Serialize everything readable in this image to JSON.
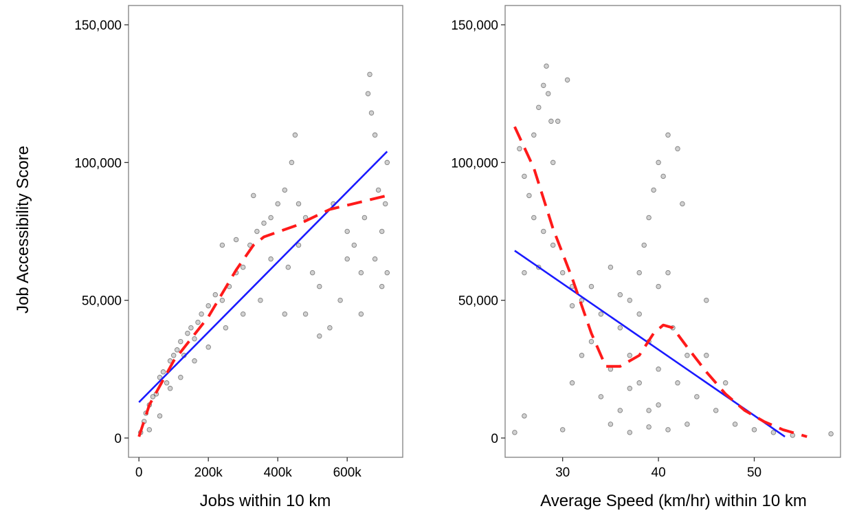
{
  "figure": {
    "ylabel": "Job Accessibility Score",
    "colors": {
      "background": "#ffffff",
      "panel_border": "#7f7f7f",
      "points": "#000000",
      "linear_fit": "#1a1aff",
      "smooth_fit": "#ff1a1a"
    }
  },
  "chart_data": [
    {
      "type": "scatter",
      "title": "",
      "xlabel": "Jobs within 10 km",
      "ylabel": "Job Accessibility Score",
      "xlim": [
        -30000,
        760000
      ],
      "ylim": [
        -7000,
        157000
      ],
      "x_ticks": [
        0,
        200000,
        400000,
        600000
      ],
      "x_tick_labels": [
        "0",
        "200k",
        "400k",
        "600k"
      ],
      "y_ticks": [
        0,
        50000,
        100000,
        150000
      ],
      "y_tick_labels": [
        "0",
        "50,000",
        "100,000",
        "150,000"
      ],
      "grid": false,
      "legend": "none",
      "series": [
        {
          "kind": "points",
          "points": [
            [
              5000,
              2000
            ],
            [
              15000,
              6000
            ],
            [
              20000,
              9000
            ],
            [
              30000,
              12000
            ],
            [
              40000,
              15000
            ],
            [
              50000,
              16000
            ],
            [
              60000,
              22000
            ],
            [
              70000,
              24000
            ],
            [
              80000,
              20000
            ],
            [
              90000,
              28000
            ],
            [
              100000,
              30000
            ],
            [
              110000,
              32000
            ],
            [
              120000,
              35000
            ],
            [
              130000,
              30000
            ],
            [
              140000,
              38000
            ],
            [
              150000,
              40000
            ],
            [
              160000,
              36000
            ],
            [
              170000,
              42000
            ],
            [
              180000,
              45000
            ],
            [
              200000,
              48000
            ],
            [
              220000,
              52000
            ],
            [
              240000,
              50000
            ],
            [
              260000,
              55000
            ],
            [
              280000,
              60000
            ],
            [
              300000,
              62000
            ],
            [
              320000,
              70000
            ],
            [
              340000,
              75000
            ],
            [
              360000,
              78000
            ],
            [
              380000,
              80000
            ],
            [
              400000,
              85000
            ],
            [
              420000,
              90000
            ],
            [
              440000,
              100000
            ],
            [
              450000,
              110000
            ],
            [
              460000,
              85000
            ],
            [
              480000,
              80000
            ],
            [
              500000,
              60000
            ],
            [
              520000,
              55000
            ],
            [
              550000,
              40000
            ],
            [
              580000,
              50000
            ],
            [
              600000,
              65000
            ],
            [
              620000,
              70000
            ],
            [
              640000,
              60000
            ],
            [
              650000,
              80000
            ],
            [
              660000,
              125000
            ],
            [
              665000,
              132000
            ],
            [
              670000,
              118000
            ],
            [
              680000,
              110000
            ],
            [
              690000,
              90000
            ],
            [
              700000,
              75000
            ],
            [
              710000,
              85000
            ],
            [
              715000,
              60000
            ],
            [
              715000,
              100000
            ],
            [
              30000,
              3000
            ],
            [
              60000,
              8000
            ],
            [
              90000,
              18000
            ],
            [
              120000,
              22000
            ],
            [
              160000,
              28000
            ],
            [
              200000,
              33000
            ],
            [
              250000,
              40000
            ],
            [
              300000,
              45000
            ],
            [
              350000,
              50000
            ],
            [
              420000,
              45000
            ],
            [
              480000,
              45000
            ],
            [
              520000,
              37000
            ],
            [
              640000,
              45000
            ],
            [
              680000,
              65000
            ],
            [
              700000,
              55000
            ],
            [
              240000,
              70000
            ],
            [
              280000,
              72000
            ],
            [
              330000,
              88000
            ],
            [
              380000,
              65000
            ],
            [
              430000,
              62000
            ],
            [
              460000,
              70000
            ],
            [
              560000,
              85000
            ],
            [
              600000,
              75000
            ]
          ]
        },
        {
          "name": "",
          "kind": "linear fit",
          "x": [
            0,
            715000
          ],
          "y": [
            13000,
            104000
          ]
        },
        {
          "name": "",
          "kind": "smooth fit (dashed)",
          "x": [
            0,
            30000,
            100000,
            200000,
            280000,
            330000,
            360000,
            450000,
            550000,
            650000,
            715000
          ],
          "y": [
            500,
            12000,
            28000,
            44000,
            61000,
            70000,
            73000,
            77000,
            83000,
            86000,
            88000
          ]
        }
      ]
    },
    {
      "type": "scatter",
      "title": "",
      "xlabel": "Average Speed (km/hr) within 10 km",
      "ylabel": "",
      "xlim": [
        24,
        59
      ],
      "ylim": [
        -7000,
        157000
      ],
      "x_ticks": [
        30,
        40,
        50
      ],
      "x_tick_labels": [
        "30",
        "40",
        "50"
      ],
      "y_ticks": [
        0,
        50000,
        100000,
        150000
      ],
      "y_tick_labels": [
        "0",
        "50,000",
        "100,000",
        "150,000"
      ],
      "grid": false,
      "legend": "none",
      "series": [
        {
          "kind": "points",
          "points": [
            [
              25.5,
              105000
            ],
            [
              26,
              95000
            ],
            [
              26.5,
              88000
            ],
            [
              27,
              110000
            ],
            [
              27.5,
              120000
            ],
            [
              28,
              128000
            ],
            [
              28.3,
              135000
            ],
            [
              28.5,
              125000
            ],
            [
              28.8,
              115000
            ],
            [
              29,
              100000
            ],
            [
              29.5,
              115000
            ],
            [
              27,
              80000
            ],
            [
              28,
              75000
            ],
            [
              29,
              70000
            ],
            [
              30,
              60000
            ],
            [
              31,
              55000
            ],
            [
              32,
              50000
            ],
            [
              26,
              60000
            ],
            [
              27.5,
              62000
            ],
            [
              30.5,
              130000
            ],
            [
              25,
              2000
            ],
            [
              26,
              8000
            ],
            [
              30,
              3000
            ],
            [
              31,
              20000
            ],
            [
              32,
              30000
            ],
            [
              33,
              35000
            ],
            [
              34,
              45000
            ],
            [
              34,
              15000
            ],
            [
              35,
              25000
            ],
            [
              35,
              5000
            ],
            [
              36,
              40000
            ],
            [
              36,
              10000
            ],
            [
              37,
              30000
            ],
            [
              37,
              50000
            ],
            [
              37,
              2000
            ],
            [
              38,
              20000
            ],
            [
              38,
              45000
            ],
            [
              38,
              60000
            ],
            [
              38.5,
              70000
            ],
            [
              39,
              35000
            ],
            [
              39,
              80000
            ],
            [
              39,
              10000
            ],
            [
              39.5,
              90000
            ],
            [
              40,
              100000
            ],
            [
              40,
              55000
            ],
            [
              40,
              25000
            ],
            [
              40.5,
              95000
            ],
            [
              41,
              110000
            ],
            [
              41,
              60000
            ],
            [
              41.5,
              40000
            ],
            [
              42,
              105000
            ],
            [
              42,
              20000
            ],
            [
              42.5,
              85000
            ],
            [
              43,
              30000
            ],
            [
              43,
              5000
            ],
            [
              44,
              15000
            ],
            [
              45,
              30000
            ],
            [
              45,
              50000
            ],
            [
              46,
              10000
            ],
            [
              47,
              20000
            ],
            [
              48,
              5000
            ],
            [
              50,
              3000
            ],
            [
              52,
              2000
            ],
            [
              54,
              1000
            ],
            [
              58,
              1500
            ],
            [
              33,
              55000
            ],
            [
              36,
              52000
            ],
            [
              35,
              62000
            ],
            [
              31,
              48000
            ],
            [
              40,
              12000
            ],
            [
              37,
              18000
            ],
            [
              39,
              4000
            ],
            [
              41,
              3000
            ]
          ]
        },
        {
          "name": "",
          "kind": "linear fit",
          "x": [
            25,
            53.2
          ],
          "y": [
            68000,
            500
          ]
        },
        {
          "name": "",
          "kind": "smooth fit (dashed)",
          "x": [
            25,
            27,
            29,
            31,
            33,
            34.5,
            36,
            38,
            39.5,
            40.5,
            41.5,
            43,
            45,
            47,
            49,
            51,
            53,
            55.5
          ],
          "y": [
            113000,
            98000,
            76000,
            58000,
            38000,
            26000,
            26000,
            30000,
            38000,
            41000,
            40000,
            33000,
            24000,
            16000,
            10000,
            6000,
            3000,
            500
          ]
        }
      ]
    }
  ]
}
